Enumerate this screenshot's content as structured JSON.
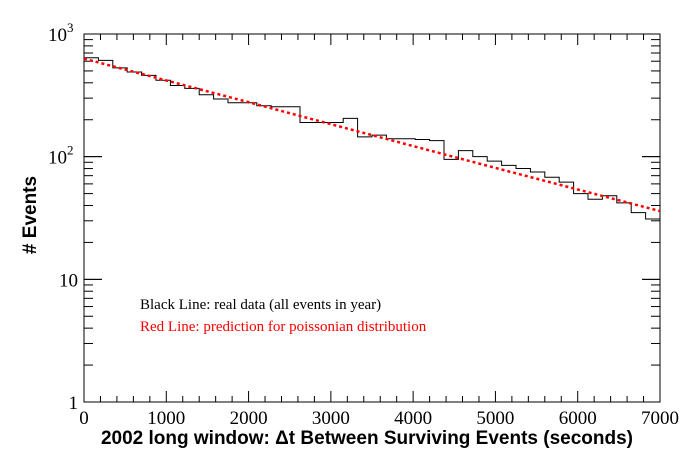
{
  "chart_data": {
    "type": "line",
    "xlabel": "2002 long window:  Δt Between Surviving Events (seconds)",
    "ylabel": "# Events",
    "xlim": [
      0,
      7000
    ],
    "ylim": [
      1,
      1000
    ],
    "yscale": "log",
    "grid": false,
    "x_ticks": [
      0,
      1000,
      2000,
      3000,
      4000,
      5000,
      6000,
      7000
    ],
    "x_tick_labels": [
      "0",
      "1000",
      "2000",
      "3000",
      "4000",
      "5000",
      "6000",
      "7000"
    ],
    "y_ticks": [
      1,
      10,
      100,
      1000
    ],
    "y_tick_labels": [
      {
        "base": "1",
        "exp": ""
      },
      {
        "base": "10",
        "exp": ""
      },
      {
        "base": "10",
        "exp": "2"
      },
      {
        "base": "10",
        "exp": "3"
      }
    ],
    "annotations": [
      {
        "text": "Black Line: real data (all events in year)",
        "color": "#000000"
      },
      {
        "text": "Red Line: prediction for poissonian distribution",
        "color": "#ff0000"
      }
    ],
    "bin_width": 175,
    "series": [
      {
        "kind": "histogram",
        "color": "#000000",
        "bin_edges_start": 0,
        "values": [
          640,
          610,
          530,
          490,
          460,
          420,
          380,
          360,
          320,
          295,
          275,
          275,
          260,
          255,
          255,
          190,
          190,
          190,
          205,
          145,
          150,
          140,
          140,
          138,
          135,
          95,
          112,
          100,
          92,
          85,
          80,
          75,
          68,
          62,
          50,
          45,
          48,
          42,
          35,
          31,
          35
        ]
      },
      {
        "kind": "curve",
        "color": "#ff0000",
        "style": "dotted",
        "x": [
          0,
          1000,
          2000,
          3000,
          4000,
          5000,
          6000,
          7000
        ],
        "y": [
          630,
          418,
          278,
          184,
          122,
          81,
          54,
          36
        ]
      }
    ]
  }
}
